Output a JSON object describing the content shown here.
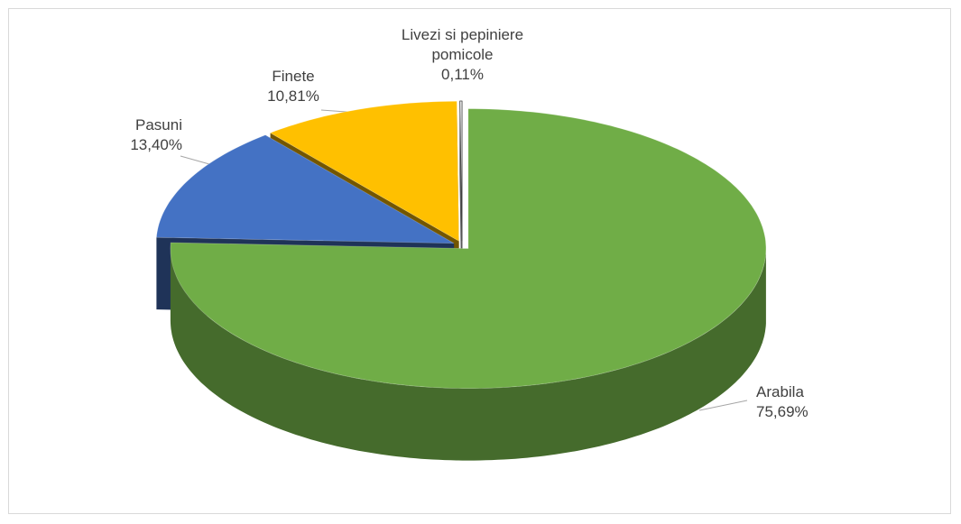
{
  "chart_data": {
    "type": "pie",
    "categories": [
      "Arabila",
      "Pasuni",
      "Finete",
      "Livezi si pepiniere pomicole"
    ],
    "values": [
      75.69,
      13.4,
      10.81,
      0.11
    ],
    "value_labels": [
      "75,69%",
      "13,40%",
      "10,81%",
      "0,11%"
    ],
    "colors": [
      "#70ad47",
      "#4472c4",
      "#ffc000",
      "#ffffff"
    ]
  }
}
